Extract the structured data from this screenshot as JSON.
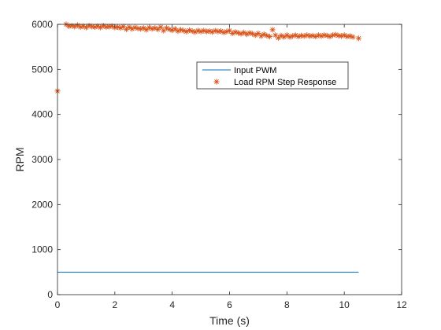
{
  "chart_data": {
    "type": "line",
    "title": "",
    "xlabel": "Time (s)",
    "ylabel": "RPM",
    "xlim": [
      0,
      12
    ],
    "ylim": [
      0,
      6000
    ],
    "xticks": [
      0,
      2,
      4,
      6,
      8,
      10,
      12
    ],
    "yticks": [
      0,
      1000,
      2000,
      3000,
      4000,
      5000,
      6000
    ],
    "xtick_labels": [
      "0",
      "2",
      "4",
      "6",
      "8",
      "10",
      "12"
    ],
    "ytick_labels": [
      "0",
      "1000",
      "2000",
      "3000",
      "4000",
      "5000",
      "6000"
    ],
    "grid": false,
    "legend_position": "upper-right-inside",
    "series": [
      {
        "name": "Input PWM",
        "style": "line",
        "color": "#0072BD",
        "x": [
          0,
          10.5
        ],
        "y": [
          500,
          500
        ]
      },
      {
        "name": "Load RPM Step Response",
        "style": "markers",
        "marker": "asterisk",
        "color": "#D95319",
        "x": [
          0.0,
          0.3,
          0.4,
          0.5,
          0.6,
          0.7,
          0.8,
          0.9,
          1.0,
          1.1,
          1.2,
          1.3,
          1.4,
          1.5,
          1.6,
          1.7,
          1.8,
          1.9,
          2.0,
          2.1,
          2.2,
          2.3,
          2.4,
          2.5,
          2.6,
          2.7,
          2.8,
          2.9,
          3.0,
          3.1,
          3.2,
          3.3,
          3.4,
          3.5,
          3.6,
          3.7,
          3.8,
          3.9,
          4.0,
          4.1,
          4.2,
          4.3,
          4.4,
          4.5,
          4.6,
          4.7,
          4.8,
          4.9,
          5.0,
          5.1,
          5.2,
          5.3,
          5.4,
          5.5,
          5.6,
          5.7,
          5.8,
          5.9,
          6.0,
          6.1,
          6.2,
          6.3,
          6.4,
          6.5,
          6.6,
          6.7,
          6.8,
          6.9,
          7.0,
          7.1,
          7.2,
          7.3,
          7.4,
          7.5,
          7.6,
          7.7,
          7.8,
          7.9,
          8.0,
          8.1,
          8.2,
          8.3,
          8.4,
          8.5,
          8.6,
          8.7,
          8.8,
          8.9,
          9.0,
          9.1,
          9.2,
          9.3,
          9.4,
          9.5,
          9.6,
          9.7,
          9.8,
          9.9,
          10.0,
          10.1,
          10.2,
          10.3,
          10.5
        ],
        "y": [
          4520,
          6000,
          5960,
          5970,
          5950,
          5980,
          5940,
          5960,
          5930,
          5970,
          5950,
          5940,
          5960,
          5930,
          5970,
          5940,
          5950,
          5960,
          5930,
          5940,
          5920,
          5950,
          5890,
          5940,
          5900,
          5930,
          5910,
          5900,
          5920,
          5880,
          5930,
          5900,
          5920,
          5890,
          5940,
          5860,
          5920,
          5890,
          5870,
          5900,
          5850,
          5880,
          5860,
          5840,
          5870,
          5850,
          5830,
          5860,
          5840,
          5860,
          5840,
          5850,
          5830,
          5860,
          5840,
          5850,
          5820,
          5840,
          5860,
          5800,
          5830,
          5810,
          5790,
          5820,
          5780,
          5810,
          5790,
          5760,
          5800,
          5740,
          5780,
          5750,
          5730,
          5880,
          5760,
          5700,
          5750,
          5720,
          5760,
          5720,
          5740,
          5760,
          5730,
          5750,
          5740,
          5760,
          5740,
          5750,
          5730,
          5760,
          5740,
          5760,
          5750,
          5730,
          5760,
          5770,
          5750,
          5740,
          5760,
          5730,
          5740,
          5720,
          5690
        ]
      }
    ]
  }
}
